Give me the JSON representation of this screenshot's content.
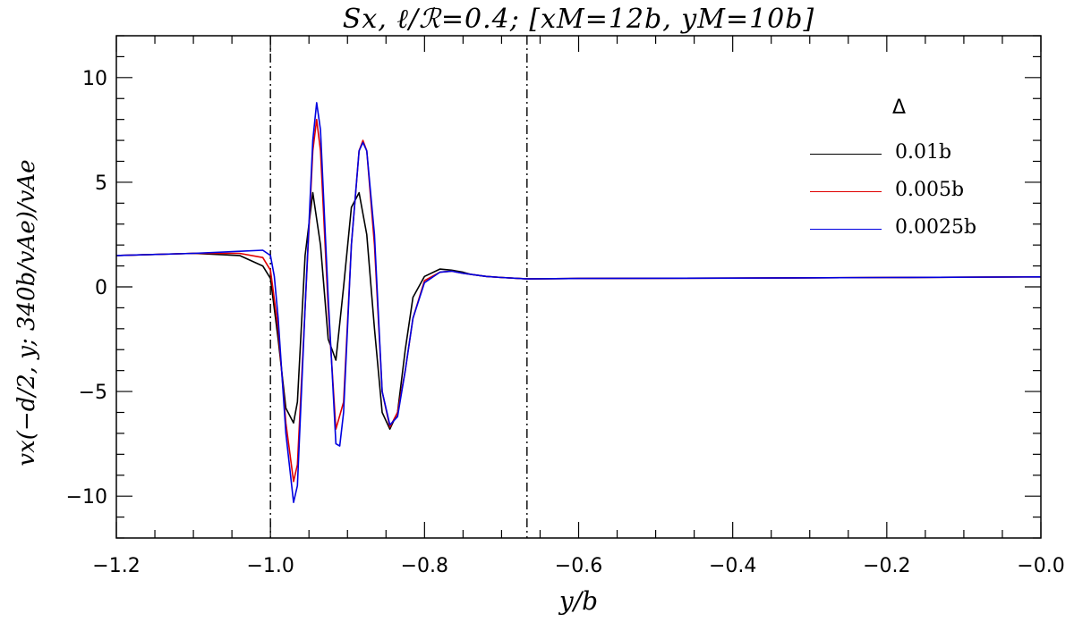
{
  "chart_data": {
    "type": "line",
    "title": "Sx, ℓ/ℛ=0.4; [xM=12b, yM=10b]",
    "xlabel": "y/b",
    "ylabel": "vx(−d/2, y; 340b/vAe)/vAe",
    "xlim": [
      -1.2,
      0.0
    ],
    "ylim": [
      -12,
      12
    ],
    "xticks": [
      -1.2,
      -1.0,
      -0.8,
      -0.6,
      -0.4,
      -0.2,
      0.0
    ],
    "xticklabels": [
      "−1.2",
      "−1.0",
      "−0.8",
      "−0.6",
      "−0.4",
      "−0.2",
      "−0.0"
    ],
    "yticks": [
      -10,
      -5,
      0,
      5,
      10
    ],
    "yticklabels": [
      "−10",
      "−5",
      "0",
      "5",
      "10"
    ],
    "vlines": [
      -1.0,
      -0.667
    ],
    "legend": {
      "title": "Δ",
      "placement": "upper-right"
    },
    "series": [
      {
        "name": "0.01b",
        "color": "#000000",
        "x": [
          -1.2,
          -1.1,
          -1.04,
          -1.01,
          -1.0,
          -0.99,
          -0.98,
          -0.97,
          -0.965,
          -0.955,
          -0.945,
          -0.935,
          -0.925,
          -0.915,
          -0.905,
          -0.895,
          -0.885,
          -0.875,
          -0.865,
          -0.855,
          -0.845,
          -0.835,
          -0.825,
          -0.815,
          -0.8,
          -0.78,
          -0.765,
          -0.75,
          -0.74,
          -0.72,
          -0.7,
          -0.667,
          -0.6,
          -0.4,
          -0.2,
          0.0
        ],
        "y": [
          1.5,
          1.6,
          1.5,
          1.0,
          0.4,
          -2.5,
          -5.8,
          -6.5,
          -5.5,
          1.5,
          4.5,
          2.0,
          -2.5,
          -3.5,
          0.0,
          3.8,
          4.5,
          2.5,
          -2.0,
          -6.0,
          -6.8,
          -6.0,
          -3.0,
          -0.5,
          0.5,
          0.85,
          0.8,
          0.7,
          0.6,
          0.5,
          0.45,
          0.38,
          0.4,
          0.42,
          0.45,
          0.48
        ]
      },
      {
        "name": "0.005b",
        "color": "#e00000",
        "x": [
          -1.2,
          -1.1,
          -1.04,
          -1.01,
          -1.0,
          -0.99,
          -0.98,
          -0.97,
          -0.965,
          -0.955,
          -0.945,
          -0.94,
          -0.935,
          -0.925,
          -0.915,
          -0.905,
          -0.895,
          -0.885,
          -0.88,
          -0.875,
          -0.865,
          -0.855,
          -0.845,
          -0.835,
          -0.825,
          -0.815,
          -0.8,
          -0.78,
          -0.765,
          -0.75,
          -0.72,
          -0.7,
          -0.667,
          -0.6,
          -0.4,
          -0.2,
          0.0
        ],
        "y": [
          1.5,
          1.6,
          1.6,
          1.4,
          0.8,
          -2.0,
          -6.5,
          -9.3,
          -8.5,
          -1.0,
          6.5,
          8.0,
          6.5,
          -1.0,
          -6.8,
          -5.5,
          2.0,
          6.5,
          7.0,
          6.5,
          2.0,
          -5.0,
          -6.7,
          -6.0,
          -4.0,
          -1.5,
          0.3,
          0.7,
          0.75,
          0.65,
          0.5,
          0.45,
          0.38,
          0.4,
          0.42,
          0.45,
          0.48
        ]
      },
      {
        "name": "0.0025b",
        "color": "#0000e0",
        "x": [
          -1.2,
          -1.1,
          -1.04,
          -1.01,
          -1.0,
          -0.995,
          -0.99,
          -0.98,
          -0.97,
          -0.965,
          -0.955,
          -0.945,
          -0.94,
          -0.935,
          -0.925,
          -0.915,
          -0.91,
          -0.905,
          -0.895,
          -0.885,
          -0.88,
          -0.875,
          -0.865,
          -0.855,
          -0.845,
          -0.835,
          -0.825,
          -0.815,
          -0.8,
          -0.78,
          -0.765,
          -0.75,
          -0.72,
          -0.7,
          -0.667,
          -0.6,
          -0.4,
          -0.2,
          0.0
        ],
        "y": [
          1.5,
          1.6,
          1.7,
          1.75,
          1.5,
          0.5,
          -1.5,
          -7.0,
          -10.3,
          -9.5,
          -1.0,
          7.0,
          8.8,
          7.5,
          -0.5,
          -7.5,
          -7.6,
          -6.0,
          2.0,
          6.5,
          6.9,
          6.5,
          2.5,
          -5.0,
          -6.6,
          -6.2,
          -4.0,
          -1.5,
          0.2,
          0.7,
          0.75,
          0.65,
          0.5,
          0.45,
          0.38,
          0.4,
          0.42,
          0.45,
          0.48
        ]
      }
    ]
  }
}
